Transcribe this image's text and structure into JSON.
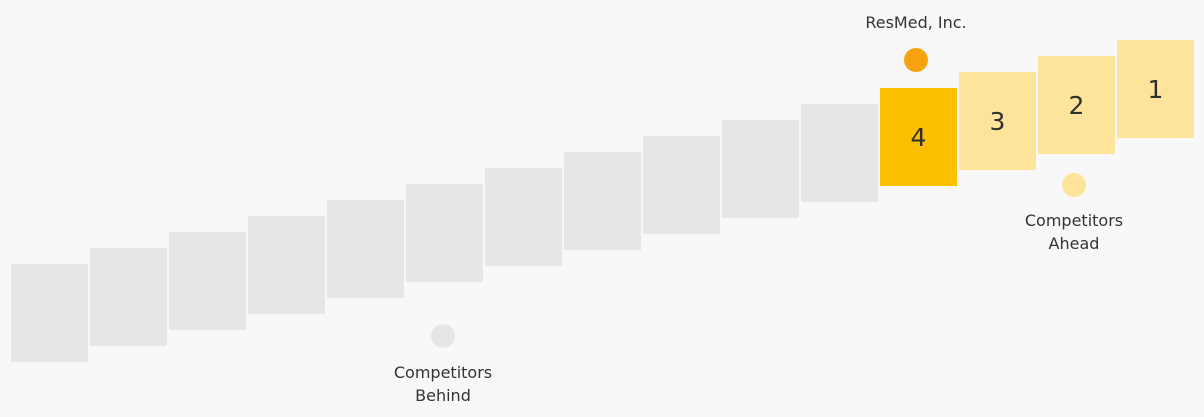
{
  "company": {
    "name": "ResMed, Inc.",
    "rank": "4"
  },
  "steps": [
    {
      "label": "",
      "state": "behind"
    },
    {
      "label": "",
      "state": "behind"
    },
    {
      "label": "",
      "state": "behind"
    },
    {
      "label": "",
      "state": "behind"
    },
    {
      "label": "",
      "state": "behind"
    },
    {
      "label": "",
      "state": "behind"
    },
    {
      "label": "",
      "state": "behind"
    },
    {
      "label": "",
      "state": "behind"
    },
    {
      "label": "",
      "state": "behind"
    },
    {
      "label": "",
      "state": "behind"
    },
    {
      "label": "",
      "state": "behind"
    },
    {
      "label": "4",
      "state": "current"
    },
    {
      "label": "3",
      "state": "ahead"
    },
    {
      "label": "2",
      "state": "ahead"
    },
    {
      "label": "1",
      "state": "ahead"
    }
  ],
  "legend": {
    "current_label": "ResMed, Inc.",
    "ahead_label_line1": "Competitors",
    "ahead_label_line2": "Ahead",
    "behind_label_line1": "Competitors",
    "behind_label_line2": "Behind"
  },
  "colors": {
    "behind": "#e6e6e6",
    "current": "#fcc000",
    "ahead": "#fde49a",
    "current_dot": "#f5a20e",
    "ahead_dot": "#fde49a",
    "behind_dot": "#e6e6e6"
  }
}
